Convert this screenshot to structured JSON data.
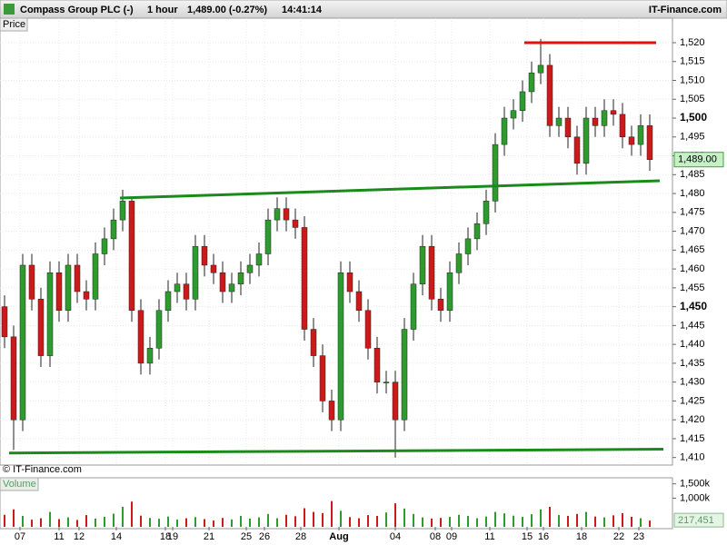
{
  "header": {
    "title": "Compass Group PLC (-)",
    "interval": "1 hour",
    "quote": "1,489.00 (-0.27%)",
    "time": "14:41:14",
    "brand": "IT-Finance.com"
  },
  "chart_data": {
    "type": "candlestick",
    "price_label": "Price",
    "volume_label": "Volume",
    "copyright": "© IT-Finance.com",
    "open": [
      1450,
      1442,
      1420,
      1461,
      1452,
      1437,
      1459,
      1449,
      1461,
      1454,
      1452,
      1464,
      1468,
      1473,
      1478,
      1449,
      1435,
      1439,
      1449,
      1454,
      1456,
      1452,
      1466,
      1461,
      1459,
      1454,
      1456,
      1459,
      1461,
      1464,
      1473,
      1476,
      1473,
      1471,
      1444,
      1437,
      1425,
      1420,
      1459,
      1454,
      1449,
      1439,
      1430,
      1430,
      1420,
      1444,
      1456,
      1466,
      1452,
      1449,
      1459,
      1464,
      1468,
      1472,
      1478,
      1493,
      1500,
      1502,
      1507,
      1512,
      1514,
      1498,
      1500,
      1495,
      1488,
      1500,
      1498,
      1502,
      1501,
      1495,
      1493,
      1498
    ],
    "high": [
      1453,
      1445,
      1464,
      1464,
      1455,
      1462,
      1462,
      1464,
      1464,
      1457,
      1467,
      1471,
      1476,
      1481,
      1479,
      1452,
      1442,
      1452,
      1457,
      1459,
      1459,
      1469,
      1469,
      1464,
      1462,
      1459,
      1462,
      1464,
      1467,
      1476,
      1479,
      1479,
      1476,
      1474,
      1447,
      1440,
      1428,
      1462,
      1462,
      1457,
      1452,
      1442,
      1433,
      1433,
      1447,
      1459,
      1469,
      1469,
      1455,
      1462,
      1467,
      1471,
      1475,
      1481,
      1496,
      1503,
      1505,
      1510,
      1515,
      1521,
      1517,
      1503,
      1503,
      1498,
      1503,
      1503,
      1505,
      1505,
      1504,
      1498,
      1501,
      1501
    ],
    "low": [
      1439,
      1412,
      1417,
      1449,
      1434,
      1434,
      1446,
      1446,
      1451,
      1449,
      1449,
      1461,
      1465,
      1470,
      1446,
      1432,
      1432,
      1436,
      1446,
      1451,
      1449,
      1449,
      1458,
      1456,
      1451,
      1451,
      1453,
      1456,
      1458,
      1461,
      1470,
      1470,
      1468,
      1441,
      1434,
      1422,
      1417,
      1417,
      1451,
      1446,
      1436,
      1427,
      1427,
      1410,
      1417,
      1441,
      1453,
      1449,
      1446,
      1446,
      1456,
      1461,
      1465,
      1469,
      1475,
      1490,
      1497,
      1499,
      1504,
      1509,
      1495,
      1495,
      1492,
      1485,
      1485,
      1495,
      1495,
      1498,
      1492,
      1490,
      1490,
      1486
    ],
    "close": [
      1442,
      1420,
      1461,
      1452,
      1437,
      1459,
      1449,
      1461,
      1454,
      1452,
      1464,
      1468,
      1473,
      1478,
      1449,
      1435,
      1439,
      1449,
      1454,
      1456,
      1452,
      1466,
      1461,
      1459,
      1454,
      1456,
      1459,
      1461,
      1464,
      1473,
      1476,
      1473,
      1471,
      1444,
      1437,
      1425,
      1420,
      1459,
      1454,
      1449,
      1439,
      1430,
      1430,
      1420,
      1444,
      1456,
      1466,
      1452,
      1449,
      1459,
      1464,
      1468,
      1472,
      1478,
      1493,
      1500,
      1502,
      1507,
      1512,
      1514,
      1498,
      1500,
      1495,
      1488,
      1500,
      1498,
      1502,
      1501,
      1495,
      1493,
      1498,
      1489
    ],
    "volume": [
      420000,
      610000,
      380000,
      250000,
      300000,
      520000,
      270000,
      330000,
      240000,
      410000,
      290000,
      350000,
      460000,
      700000,
      880000,
      390000,
      310000,
      280000,
      360000,
      250000,
      300000,
      340000,
      270000,
      220000,
      310000,
      260000,
      380000,
      290000,
      330000,
      450000,
      300000,
      420000,
      370000,
      650000,
      520000,
      480000,
      900000,
      560000,
      340000,
      300000,
      410000,
      380000,
      500000,
      820000,
      640000,
      450000,
      330000,
      290000,
      310000,
      350000,
      420000,
      380000,
      300000,
      360000,
      520000,
      470000,
      390000,
      350000,
      440000,
      610000,
      700000,
      410000,
      380000,
      450000,
      520000,
      360000,
      330000,
      400000,
      480000,
      350000,
      300000,
      217451
    ],
    "xlim": [
      -0.5,
      73.5
    ],
    "xticks": [
      {
        "value": 1.7,
        "label": "07"
      },
      {
        "value": 6,
        "label": "11"
      },
      {
        "value": 8.2,
        "label": "12"
      },
      {
        "value": 12.3,
        "label": "14"
      },
      {
        "value": 17.7,
        "label": "18"
      },
      {
        "value": 18.5,
        "label": "19"
      },
      {
        "value": 22.5,
        "label": "21"
      },
      {
        "value": 26.6,
        "label": "25"
      },
      {
        "value": 28.6,
        "label": "26"
      },
      {
        "value": 32.6,
        "label": "28"
      },
      {
        "value": 36.8,
        "label": "Aug"
      },
      {
        "value": 43,
        "label": "04"
      },
      {
        "value": 47.4,
        "label": "08"
      },
      {
        "value": 49.2,
        "label": "09"
      },
      {
        "value": 53.4,
        "label": "11"
      },
      {
        "value": 57.5,
        "label": "15"
      },
      {
        "value": 59.3,
        "label": "16"
      },
      {
        "value": 63.5,
        "label": "18"
      },
      {
        "value": 67.6,
        "label": "22"
      },
      {
        "value": 69.8,
        "label": "23"
      }
    ],
    "ylim": [
      1408,
      1526.5
    ],
    "yticks": [
      {
        "value": 1410,
        "label": "1,410"
      },
      {
        "value": 1415,
        "label": "1,415"
      },
      {
        "value": 1420,
        "label": "1,420"
      },
      {
        "value": 1425,
        "label": "1,425"
      },
      {
        "value": 1430,
        "label": "1,430"
      },
      {
        "value": 1435,
        "label": "1,435"
      },
      {
        "value": 1440,
        "label": "1,440"
      },
      {
        "value": 1445,
        "label": "1,445"
      },
      {
        "value": 1450,
        "label": "1,450"
      },
      {
        "value": 1455,
        "label": "1,455"
      },
      {
        "value": 1460,
        "label": "1,460"
      },
      {
        "value": 1465,
        "label": "1,465"
      },
      {
        "value": 1470,
        "label": "1,470"
      },
      {
        "value": 1475,
        "label": "1,475"
      },
      {
        "value": 1480,
        "label": "1,480"
      },
      {
        "value": 1485,
        "label": "1,485"
      },
      {
        "value": 1490,
        "label": "1,490"
      },
      {
        "value": 1495,
        "label": "1,495"
      },
      {
        "value": 1500,
        "label": "1,500"
      },
      {
        "value": 1505,
        "label": "1,505"
      },
      {
        "value": 1510,
        "label": "1,510"
      },
      {
        "value": 1515,
        "label": "1,515"
      },
      {
        "value": 1520,
        "label": "1,520"
      }
    ],
    "bold_ticks": [
      1450,
      1500
    ],
    "vlim": [
      0,
      1680000
    ],
    "vticks": [
      {
        "value": 1500000,
        "label": "1,500k"
      },
      {
        "value": 1000000,
        "label": "1,000k"
      }
    ],
    "last_price": {
      "value": 1489,
      "label": "1,489.00"
    },
    "last_volume": {
      "value": 217451,
      "label": "217,451"
    },
    "up_color": "#2e9b2e",
    "down_color": "#cc1a1a",
    "trendlines": [
      {
        "x1": 57.2,
        "y1": 1520,
        "x2": 71.7,
        "y2": 1520,
        "color": "#e01010"
      },
      {
        "x1": 12.7,
        "y1": 1478.8,
        "x2": 72.1,
        "y2": 1483.4,
        "color": "#1a8a1a"
      },
      {
        "x1": 0.5,
        "y1": 1411.2,
        "x2": 72.5,
        "y2": 1412.2,
        "color": "#1a8a1a"
      }
    ],
    "grid": true
  }
}
